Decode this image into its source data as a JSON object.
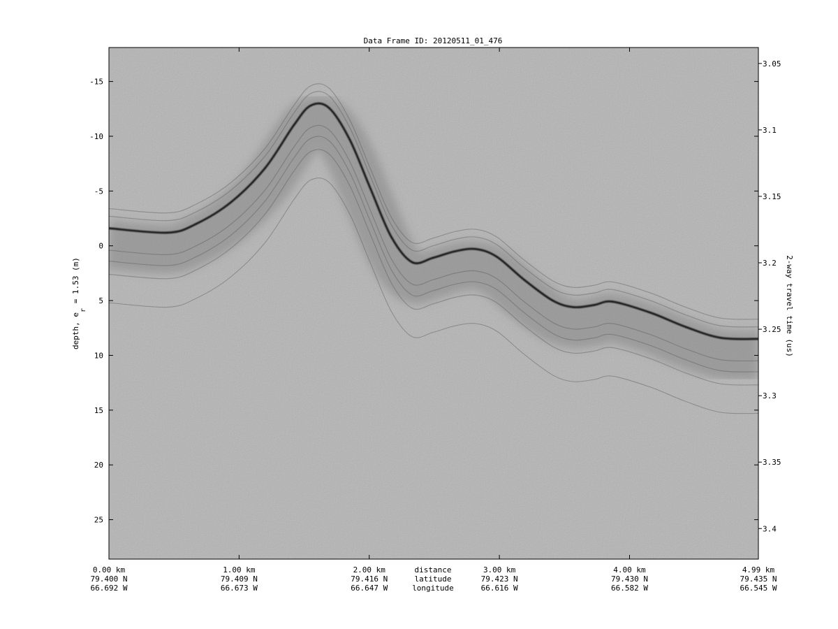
{
  "chart_data": {
    "type": "line",
    "title": "Data Frame ID: 20120511_01_476",
    "ylabel_left": "depth, e",
    "ylabel_left_sub": "r",
    "ylabel_left_suffix": " = 1.53 (m)",
    "ylabel_right": "2-way travel time (us)",
    "xlim_km": [
      0,
      4.99
    ],
    "ylim_depth_m": [
      -18.1,
      28.6
    ],
    "ylim_time_us": [
      3.038,
      3.423
    ],
    "left_ticks": [
      -15,
      -10,
      -5,
      0,
      5,
      10,
      15,
      20,
      25
    ],
    "right_ticks": [
      "3.05",
      "3.1",
      "3.15",
      "3.2",
      "3.25",
      "3.3",
      "3.35",
      "3.4"
    ],
    "x_ticks": [
      {
        "km": 0,
        "distance": "0.00 km",
        "latitude": "79.400 N",
        "longitude": "66.692 W"
      },
      {
        "km": 1,
        "distance": "1.00 km",
        "latitude": "79.409 N",
        "longitude": "66.673 W"
      },
      {
        "km": 2,
        "distance": "2.00 km",
        "latitude": "79.416 N",
        "longitude": "66.647 W"
      },
      {
        "km": 3,
        "distance": "3.00 km",
        "latitude": "79.423 N",
        "longitude": "66.616 W"
      },
      {
        "km": 4,
        "distance": "4.00 km",
        "latitude": "79.430 N",
        "longitude": "66.582 W"
      },
      {
        "km": 4.99,
        "distance": "4.99 km",
        "latitude": "79.435 N",
        "longitude": "66.545 W"
      }
    ],
    "row_labels": {
      "distance": "distance",
      "latitude": "latitude",
      "longitude": "longitude"
    },
    "colors": {
      "background": "#b4b4b4",
      "reflector": "#1e1e1e"
    },
    "colormap": "grayscale",
    "series": [
      {
        "x": [
          0,
          0.45,
          0.67,
          0.94,
          1.2,
          1.42,
          1.55,
          1.69,
          1.85,
          2.01,
          2.17,
          2.33,
          2.49,
          2.66,
          2.82,
          2.98,
          3.19,
          3.41,
          3.57,
          3.73,
          3.87,
          4.16,
          4.43,
          4.7,
          4.99
        ],
        "y": [
          -1.6,
          -1.2,
          -2.0,
          -4.0,
          -7.1,
          -11.0,
          -12.8,
          -12.6,
          -9.7,
          -5.2,
          -0.8,
          1.5,
          1.1,
          0.5,
          0.3,
          1.0,
          3.1,
          5.0,
          5.6,
          5.4,
          5.1,
          6.1,
          7.4,
          8.4,
          8.5
        ]
      }
    ]
  }
}
